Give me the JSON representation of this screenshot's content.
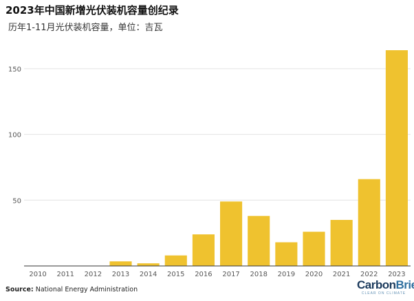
{
  "header": {
    "title": "2023年中国新增光伏装机容量创纪录",
    "subtitle": "历年1-11月光伏装机容量，单位：吉瓦"
  },
  "footer": {
    "source_label": "Source:",
    "source_text": "National Energy Administration"
  },
  "brand": {
    "name_part1": "Carbon",
    "name_part2": "Brief",
    "tagline": "CLEAR ON CLIMATE"
  },
  "colors": {
    "bar": "#efc22f",
    "grid": "#e3e3e3",
    "axis": "#333333",
    "tick_label": "#555555"
  },
  "chart_data": {
    "type": "bar",
    "categories": [
      "2010",
      "2011",
      "2012",
      "2013",
      "2014",
      "2015",
      "2016",
      "2017",
      "2018",
      "2019",
      "2020",
      "2021",
      "2022",
      "2023"
    ],
    "values": [
      0,
      0,
      0,
      3.5,
      2,
      8,
      24,
      49,
      38,
      18,
      26,
      35,
      66,
      164
    ],
    "ylim": [
      0,
      175
    ],
    "yticks": [
      50,
      100,
      150
    ],
    "grid": true,
    "xlabel": "",
    "ylabel": ""
  }
}
